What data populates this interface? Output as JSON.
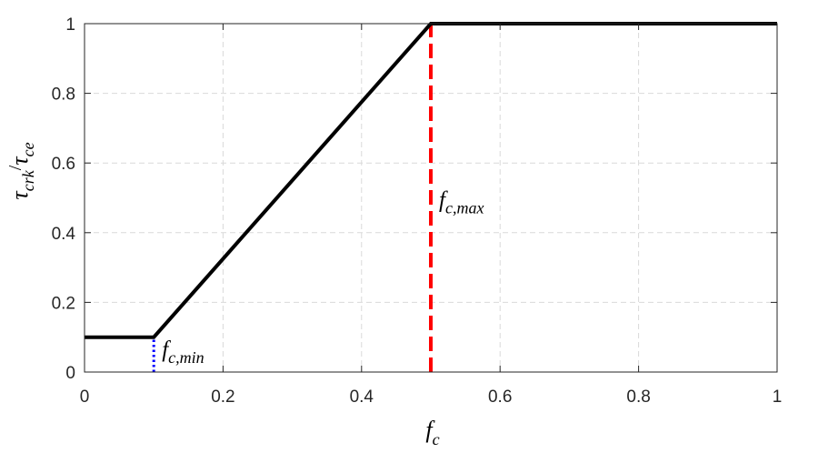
{
  "chart_data": {
    "type": "line",
    "xlabel": {
      "base": "f",
      "sub": "c"
    },
    "ylabel": {
      "num_base": "τ",
      "num_sub": "crk",
      "slash": "/",
      "den_base": "τ",
      "den_sub": "ce"
    },
    "xlim": [
      0,
      1
    ],
    "ylim": [
      0,
      1
    ],
    "xticks": [
      0,
      0.2,
      0.4,
      0.6,
      0.8,
      1
    ],
    "yticks": [
      0,
      0.2,
      0.4,
      0.6,
      0.8,
      1
    ],
    "xtick_labels": [
      "0",
      "0.2",
      "0.4",
      "0.6",
      "0.8",
      "1"
    ],
    "ytick_labels": [
      "0",
      "0.2",
      "0.4",
      "0.6",
      "0.8",
      "1"
    ],
    "grid": true,
    "series": [
      {
        "style": "solid",
        "color": "#000000",
        "x": [
          0,
          0.1,
          0.5,
          1
        ],
        "y": [
          0.1,
          0.1,
          1,
          1
        ]
      }
    ],
    "reference_lines": [
      {
        "style": "dotted",
        "color": "#0000ff",
        "x": 0.1,
        "y_range": [
          0,
          0.1
        ]
      },
      {
        "style": "dashed",
        "color": "#ff0000",
        "x": 0.5,
        "y_range": [
          0,
          1
        ]
      }
    ],
    "annotations": [
      {
        "base": "f",
        "sub": "c,min",
        "x": 0.1,
        "y": 0.07
      },
      {
        "base": "f",
        "sub": "c,max",
        "x": 0.5,
        "y": 0.5
      }
    ]
  }
}
